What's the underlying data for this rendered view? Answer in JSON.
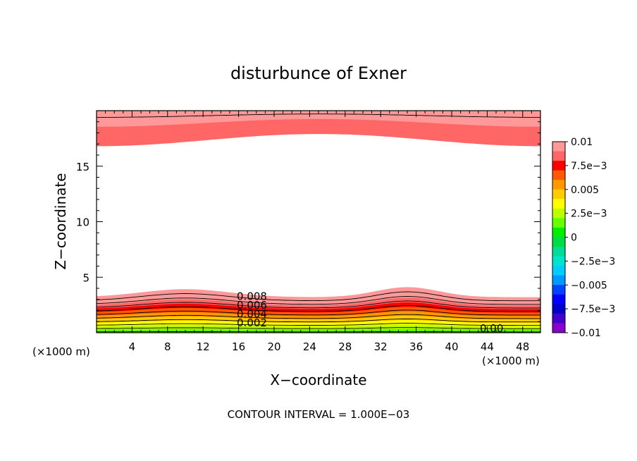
{
  "chart_data": {
    "type": "contour",
    "title": "disturbunce of Exner",
    "xlabel": "X−coordinate",
    "ylabel": "Z−coordinate",
    "x_unit_left": "(×1000 m)",
    "x_unit_right": "(×1000 m)",
    "footer": "CONTOUR INTERVAL = 1.000E−03",
    "xlim": [
      0,
      50
    ],
    "ylim": [
      0,
      20
    ],
    "x_ticks": [
      4,
      8,
      12,
      16,
      20,
      24,
      28,
      32,
      36,
      40,
      44,
      48
    ],
    "y_ticks": [
      5,
      10,
      15
    ],
    "x_tick_labels": [
      "4",
      "8",
      "12",
      "16",
      "20",
      "24",
      "28",
      "32",
      "36",
      "40",
      "44",
      "48"
    ],
    "y_tick_labels": [
      "5",
      "10",
      "15"
    ],
    "contour_interval": 0.001,
    "lower_band": {
      "z_top_min": 3.2,
      "z_top_max": 4.1,
      "crest_x": [
        10,
        35
      ],
      "levels": [
        0.0,
        0.001,
        0.002,
        0.003,
        0.004,
        0.005,
        0.006,
        0.007,
        0.008,
        0.009,
        0.01
      ]
    },
    "upper_band": {
      "z_bottom_min": 16.8,
      "z_bottom_max": 17.9,
      "levels": [
        0.009,
        0.01
      ]
    },
    "contour_labels": [
      {
        "text": "0.008",
        "x": 17.5,
        "z": 2.9
      },
      {
        "text": "0.006",
        "x": 17.5,
        "z": 2.1
      },
      {
        "text": "0.004",
        "x": 17.5,
        "z": 1.3
      },
      {
        "text": "0.002",
        "x": 17.5,
        "z": 0.5
      },
      {
        "text": "0.00",
        "x": 44.5,
        "z": 0.0
      }
    ],
    "colorbar": {
      "tick_labels": [
        "0.01",
        "7.5e−3",
        "0.005",
        "2.5e−3",
        "0",
        "−2.5e−3",
        "−0.005",
        "−7.5e−3",
        "−0.01"
      ],
      "tick_values": [
        0.01,
        0.0075,
        0.005,
        0.0025,
        0,
        -0.0025,
        -0.005,
        -0.0075,
        -0.01
      ],
      "colors": [
        "#ff9999",
        "#ff6666",
        "#ff0000",
        "#ff5a00",
        "#ff9900",
        "#ffcc00",
        "#ffff00",
        "#bbff00",
        "#66ff00",
        "#00ee00",
        "#00dd44",
        "#00dd99",
        "#00e6cc",
        "#00ccff",
        "#0099ff",
        "#0044ff",
        "#0000ff",
        "#0000cc",
        "#4400cc",
        "#8800cc"
      ]
    }
  }
}
